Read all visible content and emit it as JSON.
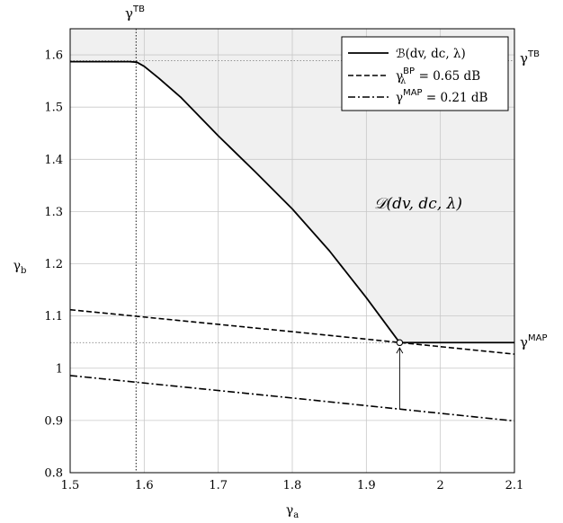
{
  "chart_data": {
    "type": "line",
    "title": "",
    "xlabel": "γa",
    "ylabel": "γb",
    "xlim": [
      1.5,
      2.1
    ],
    "ylim": [
      0.8,
      1.65
    ],
    "xticks": [
      "1.5",
      "1.6",
      "1.7",
      "1.8",
      "1.9",
      "2",
      "2.1"
    ],
    "yticks": [
      "0.8",
      "0.9",
      "1",
      "1.1",
      "1.2",
      "1.3",
      "1.4",
      "1.5",
      "1.6"
    ],
    "grid": true,
    "legend_position": "top-right",
    "shaded_region": {
      "label": "𝒟(dv, dc, λ)",
      "fill": "#f0f0f0"
    },
    "series": [
      {
        "name": "ℬ(dv, dc, λ)",
        "style": "solid",
        "x": [
          1.5,
          1.58,
          1.59,
          1.6,
          1.62,
          1.65,
          1.7,
          1.75,
          1.8,
          1.85,
          1.9,
          1.945,
          2.0,
          2.05,
          2.1
        ],
        "y": [
          1.587,
          1.587,
          1.586,
          1.578,
          1.555,
          1.518,
          1.445,
          1.376,
          1.305,
          1.225,
          1.135,
          1.049,
          1.049,
          1.049,
          1.049
        ]
      },
      {
        "name": "γλBP = 0.65 dB",
        "style": "dashed",
        "x": [
          1.5,
          1.8,
          2.1
        ],
        "y": [
          1.112,
          1.07,
          1.027
        ]
      },
      {
        "name": "γMAP = 0.21 dB",
        "style": "dashdot",
        "x": [
          1.5,
          1.8,
          2.1
        ],
        "y": [
          0.986,
          0.943,
          0.899
        ]
      }
    ],
    "reference_lines": {
      "gamma_TB_x": 1.589,
      "gamma_TB_y": 1.589,
      "gamma_MAP_y": 1.049,
      "color": "#888888"
    },
    "annotations": {
      "gamma_TB_top": "γTB",
      "gamma_TB_right": "γTB",
      "gamma_MAP_right": "γMAP",
      "marker_point": {
        "x": 1.945,
        "y": 1.049
      },
      "arrow_from": {
        "x": 1.945,
        "y": 0.922
      },
      "arrow_to": {
        "x": 1.945,
        "y": 1.039
      }
    }
  }
}
